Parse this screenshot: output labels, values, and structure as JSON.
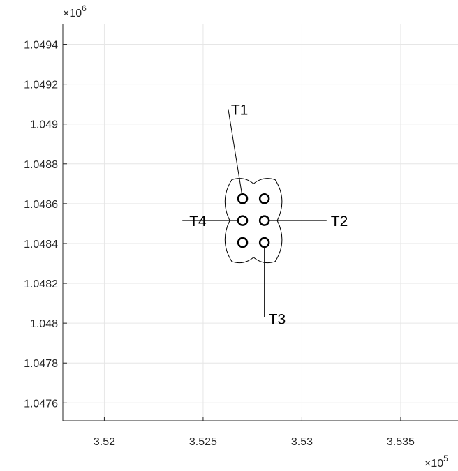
{
  "chart_data": {
    "type": "scatter",
    "title": "",
    "xlabel": "",
    "ylabel": "",
    "x_multiplier": "×10^5",
    "y_multiplier": "×10^6",
    "x_multiplier_base": "×10",
    "x_multiplier_exp": "5",
    "y_multiplier_base": "×10",
    "y_multiplier_exp": "6",
    "xlim": [
      351790,
      353790
    ],
    "ylim": [
      1047510,
      1049500
    ],
    "x_ticks": [
      {
        "value": 352000,
        "label": "3.52"
      },
      {
        "value": 352500,
        "label": "3.525"
      },
      {
        "value": 353000,
        "label": "3.53"
      },
      {
        "value": 353500,
        "label": "3.535"
      }
    ],
    "y_ticks": [
      {
        "value": 1047600,
        "label": "1.0476"
      },
      {
        "value": 1047800,
        "label": "1.0478"
      },
      {
        "value": 1048000,
        "label": "1.048"
      },
      {
        "value": 1048200,
        "label": "1.0482"
      },
      {
        "value": 1048400,
        "label": "1.0484"
      },
      {
        "value": 1048600,
        "label": "1.0486"
      },
      {
        "value": 1048800,
        "label": "1.0488"
      },
      {
        "value": 1049000,
        "label": "1.049"
      },
      {
        "value": 1049200,
        "label": "1.0492"
      },
      {
        "value": 1049400,
        "label": "1.0494"
      }
    ],
    "grid": true,
    "points": [
      {
        "x": 352700,
        "y": 1048625
      },
      {
        "x": 352810,
        "y": 1048625
      },
      {
        "x": 352700,
        "y": 1048515
      },
      {
        "x": 352810,
        "y": 1048515
      },
      {
        "x": 352700,
        "y": 1048405
      },
      {
        "x": 352810,
        "y": 1048405
      }
    ],
    "boundary": [
      {
        "x": 352755,
        "y": 1048700
      },
      {
        "x": 352865,
        "y": 1048720
      },
      {
        "x": 352875,
        "y": 1048515
      },
      {
        "x": 352865,
        "y": 1048310
      },
      {
        "x": 352755,
        "y": 1048330
      },
      {
        "x": 352645,
        "y": 1048310
      },
      {
        "x": 352635,
        "y": 1048515
      },
      {
        "x": 352645,
        "y": 1048720
      }
    ],
    "annotations": [
      {
        "label": "T1",
        "from": {
          "x": 352700,
          "y": 1048625
        },
        "to": {
          "x": 352627,
          "y": 1049075
        }
      },
      {
        "label": "T2",
        "from": {
          "x": 352810,
          "y": 1048515
        },
        "to": {
          "x": 353125,
          "y": 1048515
        }
      },
      {
        "label": "T3",
        "from": {
          "x": 352810,
          "y": 1048405
        },
        "to": {
          "x": 352810,
          "y": 1048030
        }
      },
      {
        "label": "T4",
        "from": {
          "x": 352700,
          "y": 1048515
        },
        "to": {
          "x": 352395,
          "y": 1048515
        }
      }
    ]
  }
}
